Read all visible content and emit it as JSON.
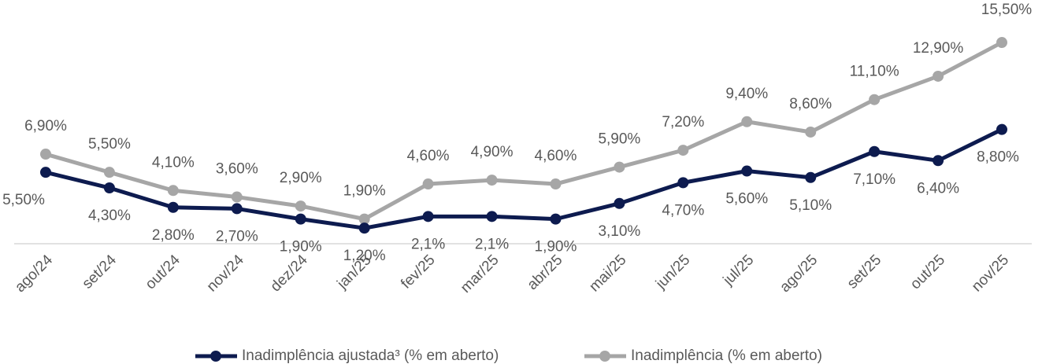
{
  "chart_data": {
    "type": "line",
    "categories": [
      "ago/24",
      "set/24",
      "out/24",
      "nov/24",
      "dez/24",
      "jan/25",
      "fev/25",
      "mar/25",
      "abr/25",
      "mai/25",
      "jun/25",
      "jul/25",
      "ago/25",
      "set/25",
      "out/25",
      "nov/25"
    ],
    "series": [
      {
        "name": "Inadimplência ajustada³ (% em aberto)",
        "color": "#0d1b4f",
        "values": [
          5.5,
          4.3,
          2.8,
          2.7,
          1.9,
          1.2,
          2.1,
          2.1,
          1.9,
          3.1,
          4.7,
          5.6,
          5.1,
          7.1,
          6.4,
          8.8
        ],
        "value_labels": [
          "5,50%",
          "4,30%",
          "2,80%",
          "2,70%",
          "1,90%",
          "1,20%",
          "2,1%",
          "2,1%",
          "1,90%",
          "3,10%",
          "4,70%",
          "5,60%",
          "5,10%",
          "7,10%",
          "6,40%",
          "8,80%"
        ]
      },
      {
        "name": "Inadimplência (% em aberto)",
        "color": "#a6a6a6",
        "values": [
          6.9,
          5.5,
          4.1,
          3.6,
          2.9,
          1.9,
          4.6,
          4.9,
          4.6,
          5.9,
          7.2,
          9.4,
          8.6,
          11.1,
          12.9,
          15.5
        ],
        "value_labels": [
          "6,90%",
          "5,50%",
          "4,10%",
          "3,60%",
          "2,90%",
          "1,90%",
          "4,60%",
          "4,90%",
          "4,60%",
          "5,90%",
          "7,20%",
          "9,40%",
          "8,60%",
          "11,10%",
          "12,90%",
          "15,50%"
        ]
      }
    ],
    "ylim": [
      0,
      17.5
    ],
    "legend": "bottom"
  }
}
